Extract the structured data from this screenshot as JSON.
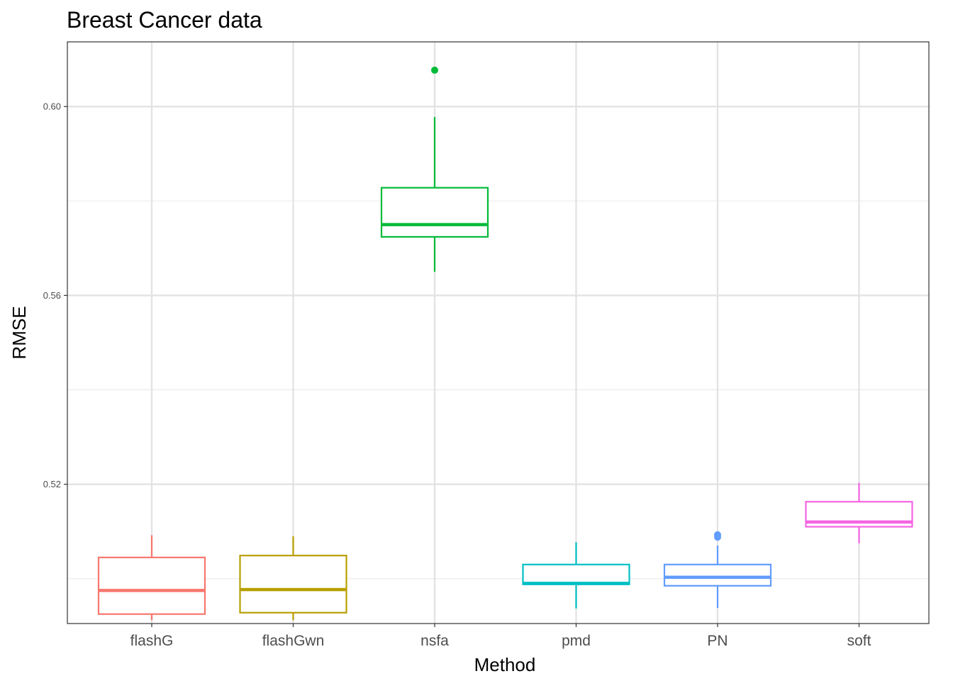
{
  "chart_data": {
    "type": "box",
    "title": "Breast Cancer data",
    "xlabel": "Method",
    "ylabel": "RMSE",
    "ylim": [
      0.4905,
      0.6137
    ],
    "y_ticks": [
      0.52,
      0.56,
      0.6
    ],
    "y_tick_labels": [
      "0.52",
      "0.56",
      "0.60"
    ],
    "y_minor_ticks": [
      0.5,
      0.54,
      0.58
    ],
    "grid": true,
    "legend": "none",
    "categories": [
      "flashG",
      "flashGwn",
      "nsfa",
      "pmd",
      "PN",
      "soft"
    ],
    "boxes": [
      {
        "category": "flashG",
        "color": "#F8766D",
        "whisker_low": 0.4912,
        "q1": 0.4925,
        "median": 0.4975,
        "q3": 0.5045,
        "whisker_high": 0.5092,
        "outliers": []
      },
      {
        "category": "flashGwn",
        "color": "#B79F00",
        "whisker_low": 0.4912,
        "q1": 0.4928,
        "median": 0.4977,
        "q3": 0.5049,
        "whisker_high": 0.509,
        "outliers": []
      },
      {
        "category": "nsfa",
        "color": "#00BA38",
        "whisker_low": 0.565,
        "q1": 0.5724,
        "median": 0.575,
        "q3": 0.5828,
        "whisker_high": 0.5978,
        "outliers": [
          0.6077
        ]
      },
      {
        "category": "pmd",
        "color": "#00BFC4",
        "whisker_low": 0.4937,
        "q1": 0.4988,
        "median": 0.499,
        "q3": 0.503,
        "whisker_high": 0.5077,
        "outliers": []
      },
      {
        "category": "PN",
        "color": "#619CFF",
        "whisker_low": 0.4938,
        "q1": 0.4985,
        "median": 0.5003,
        "q3": 0.503,
        "whisker_high": 0.507,
        "outliers": [
          0.5088,
          0.5093
        ]
      },
      {
        "category": "soft",
        "color": "#F564E3",
        "whisker_low": 0.5075,
        "q1": 0.511,
        "median": 0.512,
        "q3": 0.5163,
        "whisker_high": 0.5203,
        "outliers": []
      }
    ]
  }
}
